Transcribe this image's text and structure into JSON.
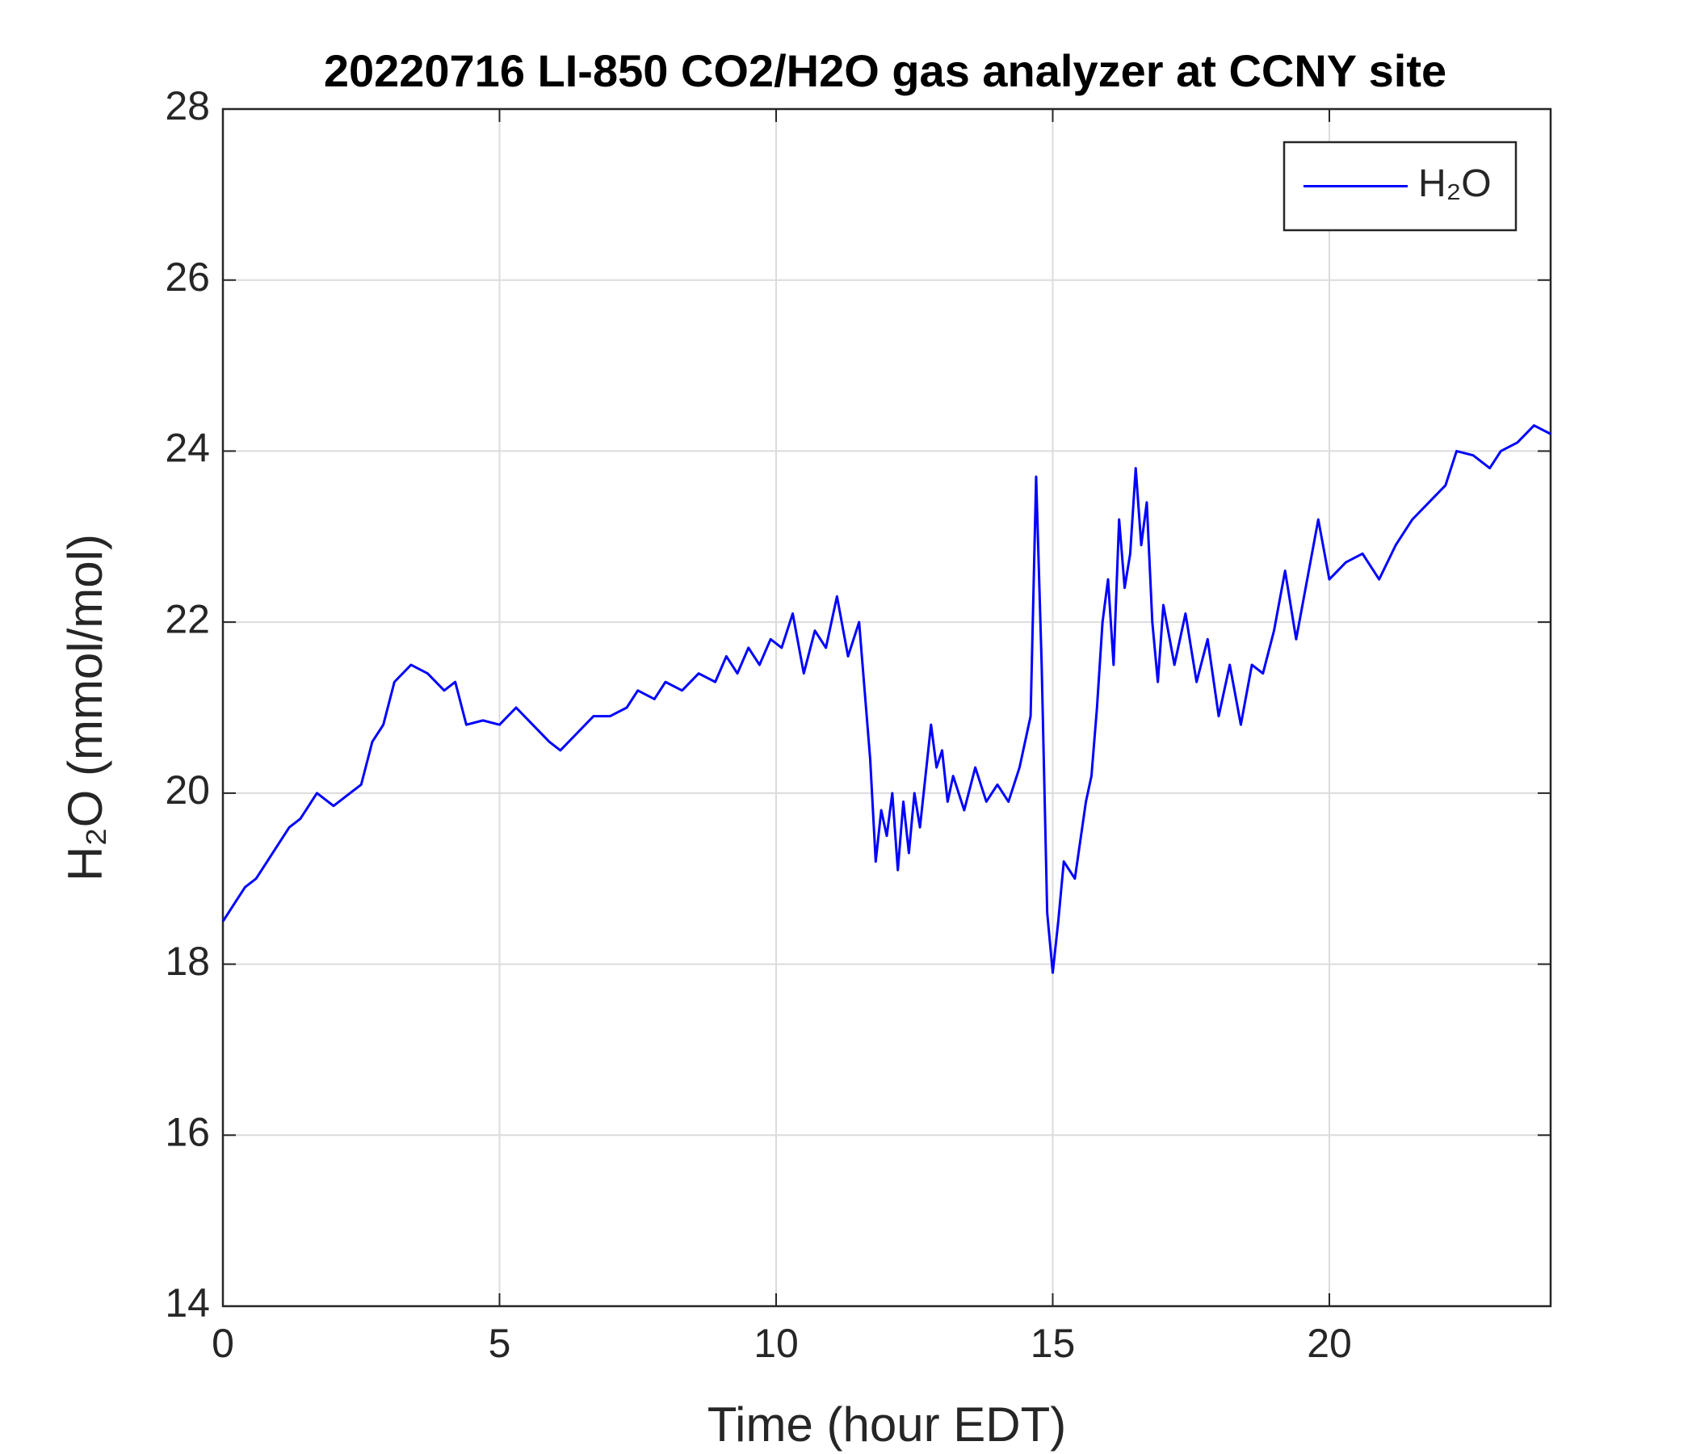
{
  "chart_data": {
    "type": "line",
    "title": "20220716 LI-850 CO2/H2O gas analyzer at CCNY site",
    "x_label": "Time (hour EDT)",
    "y_label": "H₂O (mmol/mol)",
    "xlim": [
      0,
      24
    ],
    "xticks": [
      0,
      5,
      10,
      15,
      20
    ],
    "ylim": [
      14,
      28
    ],
    "yticks": [
      14,
      16,
      18,
      20,
      22,
      24,
      26,
      28
    ],
    "grid": true,
    "legend": "top-right",
    "x": [
      0,
      0.2,
      0.4,
      0.6,
      0.8,
      1.0,
      1.2,
      1.4,
      1.7,
      2.0,
      2.3,
      2.5,
      2.7,
      2.9,
      3.1,
      3.4,
      3.7,
      4.0,
      4.2,
      4.4,
      4.7,
      5.0,
      5.3,
      5.6,
      5.9,
      6.1,
      6.4,
      6.7,
      7.0,
      7.3,
      7.5,
      7.8,
      8.0,
      8.3,
      8.6,
      8.9,
      9.1,
      9.3,
      9.5,
      9.7,
      9.9,
      10.1,
      10.3,
      10.5,
      10.7,
      10.9,
      11.1,
      11.3,
      11.5,
      11.6,
      11.7,
      11.8,
      11.9,
      12.0,
      12.1,
      12.2,
      12.3,
      12.4,
      12.5,
      12.6,
      12.8,
      12.9,
      13.0,
      13.1,
      13.2,
      13.4,
      13.6,
      13.8,
      14.0,
      14.2,
      14.4,
      14.6,
      14.7,
      14.8,
      14.9,
      15.0,
      15.1,
      15.2,
      15.4,
      15.6,
      15.7,
      15.8,
      15.9,
      16.0,
      16.1,
      16.2,
      16.3,
      16.4,
      16.5,
      16.6,
      16.7,
      16.8,
      16.9,
      17.0,
      17.2,
      17.4,
      17.6,
      17.8,
      18.0,
      18.2,
      18.4,
      18.6,
      18.8,
      19.0,
      19.2,
      19.4,
      19.6,
      19.8,
      20.0,
      20.3,
      20.6,
      20.9,
      21.2,
      21.5,
      21.8,
      22.1,
      22.3,
      22.6,
      22.9,
      23.1,
      23.4,
      23.7,
      24.0
    ],
    "series": [
      {
        "name": "H₂O",
        "color": "#0000ff",
        "values": [
          18.5,
          18.7,
          18.9,
          19.0,
          19.2,
          19.4,
          19.6,
          19.7,
          20.0,
          19.85,
          20.0,
          20.1,
          20.6,
          20.8,
          21.3,
          21.5,
          21.4,
          21.2,
          21.3,
          20.8,
          20.85,
          20.8,
          21.0,
          20.8,
          20.6,
          20.5,
          20.7,
          20.9,
          20.9,
          21.0,
          21.2,
          21.1,
          21.3,
          21.2,
          21.4,
          21.3,
          21.6,
          21.4,
          21.7,
          21.5,
          21.8,
          21.7,
          22.1,
          21.4,
          21.9,
          21.7,
          22.3,
          21.6,
          22.0,
          21.2,
          20.4,
          19.2,
          19.8,
          19.5,
          20.0,
          19.1,
          19.9,
          19.3,
          20.0,
          19.6,
          20.8,
          20.3,
          20.5,
          19.9,
          20.2,
          19.8,
          20.3,
          19.9,
          20.1,
          19.9,
          20.3,
          20.9,
          23.7,
          21.5,
          18.6,
          17.9,
          18.5,
          19.2,
          19.0,
          19.9,
          20.2,
          21.0,
          22.0,
          22.5,
          21.5,
          23.2,
          22.4,
          22.8,
          23.8,
          22.9,
          23.4,
          22.0,
          21.3,
          22.2,
          21.5,
          22.1,
          21.3,
          21.8,
          20.9,
          21.5,
          20.8,
          21.5,
          21.4,
          21.9,
          22.6,
          21.8,
          22.5,
          23.2,
          22.5,
          22.7,
          22.8,
          22.5,
          22.9,
          23.2,
          23.4,
          23.6,
          24.0,
          23.95,
          23.8,
          24.0,
          24.1,
          24.3,
          24.2
        ]
      }
    ]
  }
}
